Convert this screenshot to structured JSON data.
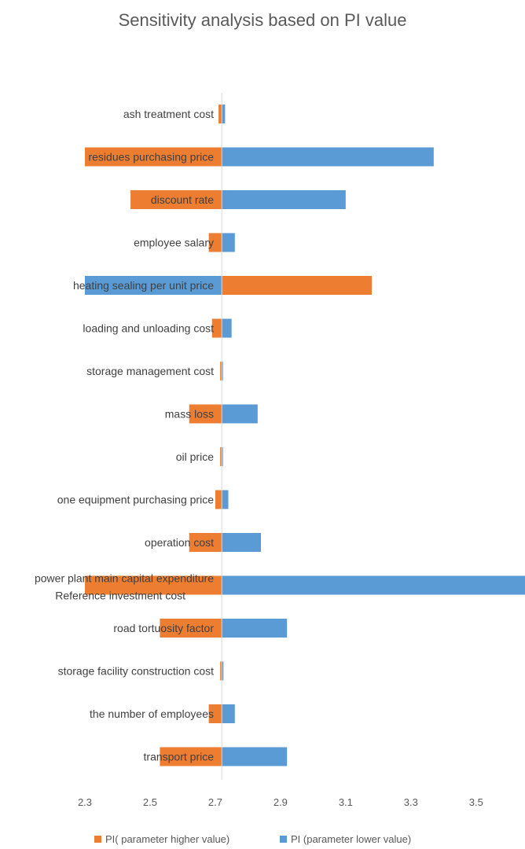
{
  "chart_data": {
    "type": "bar",
    "orientation": "horizontal",
    "title": "Sensitivity analysis based on PI value",
    "xlabel": "",
    "ylabel": "",
    "xlim": [
      2.3,
      3.65
    ],
    "x_ticks": [
      "2.3",
      "2.5",
      "2.7",
      "2.9",
      "3.1",
      "3.3",
      "3.5"
    ],
    "base_value": 2.72,
    "grid": false,
    "legend_position": "bottom",
    "categories": [
      "ash treatment cost",
      "residues purchasing price",
      "discount rate",
      "employee salary",
      "heating sealing per unit price",
      "loading and unloading cost",
      "storage management cost",
      "mass loss",
      "oil price",
      "one equipment purchasing price",
      "operation cost",
      "power plant main capital expenditure",
      "road tortuosity factor",
      "storage facility construction cost",
      "the number of employees",
      "transport price"
    ],
    "extra_label": "Reference investment cost",
    "series": [
      {
        "name": "PI( parameter higher value)",
        "color": "#ED7D31",
        "values": [
          2.71,
          2.3,
          2.44,
          2.68,
          3.18,
          2.69,
          2.715,
          2.62,
          2.715,
          2.7,
          2.62,
          2.3,
          2.53,
          2.715,
          2.68,
          2.53
        ]
      },
      {
        "name": "PI (parameter lower value)",
        "color": "#5B9BD5",
        "values": [
          2.73,
          3.37,
          3.1,
          2.76,
          2.3,
          2.75,
          2.72,
          2.83,
          2.72,
          2.74,
          2.84,
          3.65,
          2.92,
          2.725,
          2.76,
          2.92
        ]
      }
    ]
  }
}
